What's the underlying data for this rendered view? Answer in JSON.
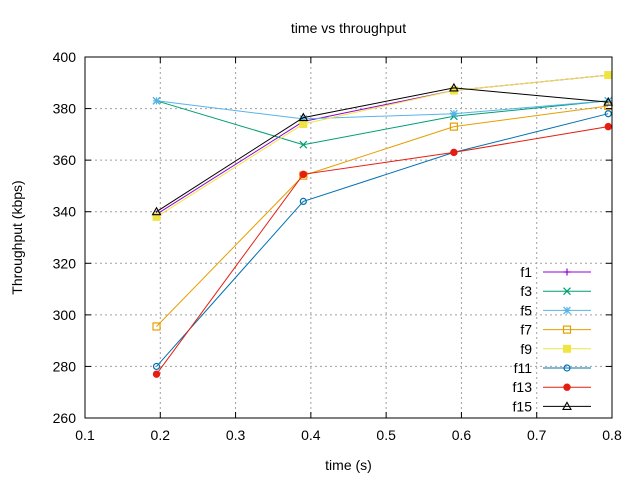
{
  "chart_data": {
    "type": "line",
    "title": "time vs throughput",
    "xlabel": "time (s)",
    "ylabel": "Throughput (kbps)",
    "xlim": [
      0.1,
      0.8
    ],
    "ylim": [
      260,
      400
    ],
    "xticks": [
      "0.1",
      "0.2",
      "0.3",
      "0.4",
      "0.5",
      "0.6",
      "0.7",
      "0.8"
    ],
    "yticks": [
      "260",
      "280",
      "300",
      "320",
      "340",
      "360",
      "380",
      "400"
    ],
    "grid": true,
    "legend_position": "bottom-right",
    "series": [
      {
        "name": "f1",
        "color": "#9400d3",
        "marker": "plus",
        "x": [
          0.195,
          0.39,
          0.59,
          0.795
        ],
        "y": [
          339,
          375,
          387,
          393
        ]
      },
      {
        "name": "f3",
        "color": "#009e73",
        "marker": "cross",
        "x": [
          0.195,
          0.39,
          0.59,
          0.795
        ],
        "y": [
          383,
          366,
          377,
          383
        ]
      },
      {
        "name": "f5",
        "color": "#56b4e9",
        "marker": "star",
        "x": [
          0.195,
          0.39,
          0.59,
          0.795
        ],
        "y": [
          383,
          376,
          378,
          383
        ]
      },
      {
        "name": "f7",
        "color": "#e69f00",
        "marker": "square",
        "x": [
          0.195,
          0.39,
          0.59,
          0.795
        ],
        "y": [
          295.5,
          354,
          373,
          381
        ]
      },
      {
        "name": "f9",
        "color": "#f0e442",
        "marker": "filled-square",
        "x": [
          0.195,
          0.39,
          0.59,
          0.795
        ],
        "y": [
          338,
          374,
          387,
          393
        ]
      },
      {
        "name": "f11",
        "color": "#0072b2",
        "marker": "circle",
        "x": [
          0.195,
          0.39,
          0.59,
          0.795
        ],
        "y": [
          280,
          344,
          363,
          378
        ]
      },
      {
        "name": "f13",
        "color": "#e51e10",
        "marker": "filled-circle",
        "x": [
          0.195,
          0.39,
          0.59,
          0.795
        ],
        "y": [
          277,
          354.5,
          363,
          373
        ]
      },
      {
        "name": "f15",
        "color": "#000000",
        "marker": "triangle",
        "x": [
          0.195,
          0.39,
          0.59,
          0.795
        ],
        "y": [
          340,
          376.5,
          388,
          382.5
        ]
      }
    ]
  }
}
